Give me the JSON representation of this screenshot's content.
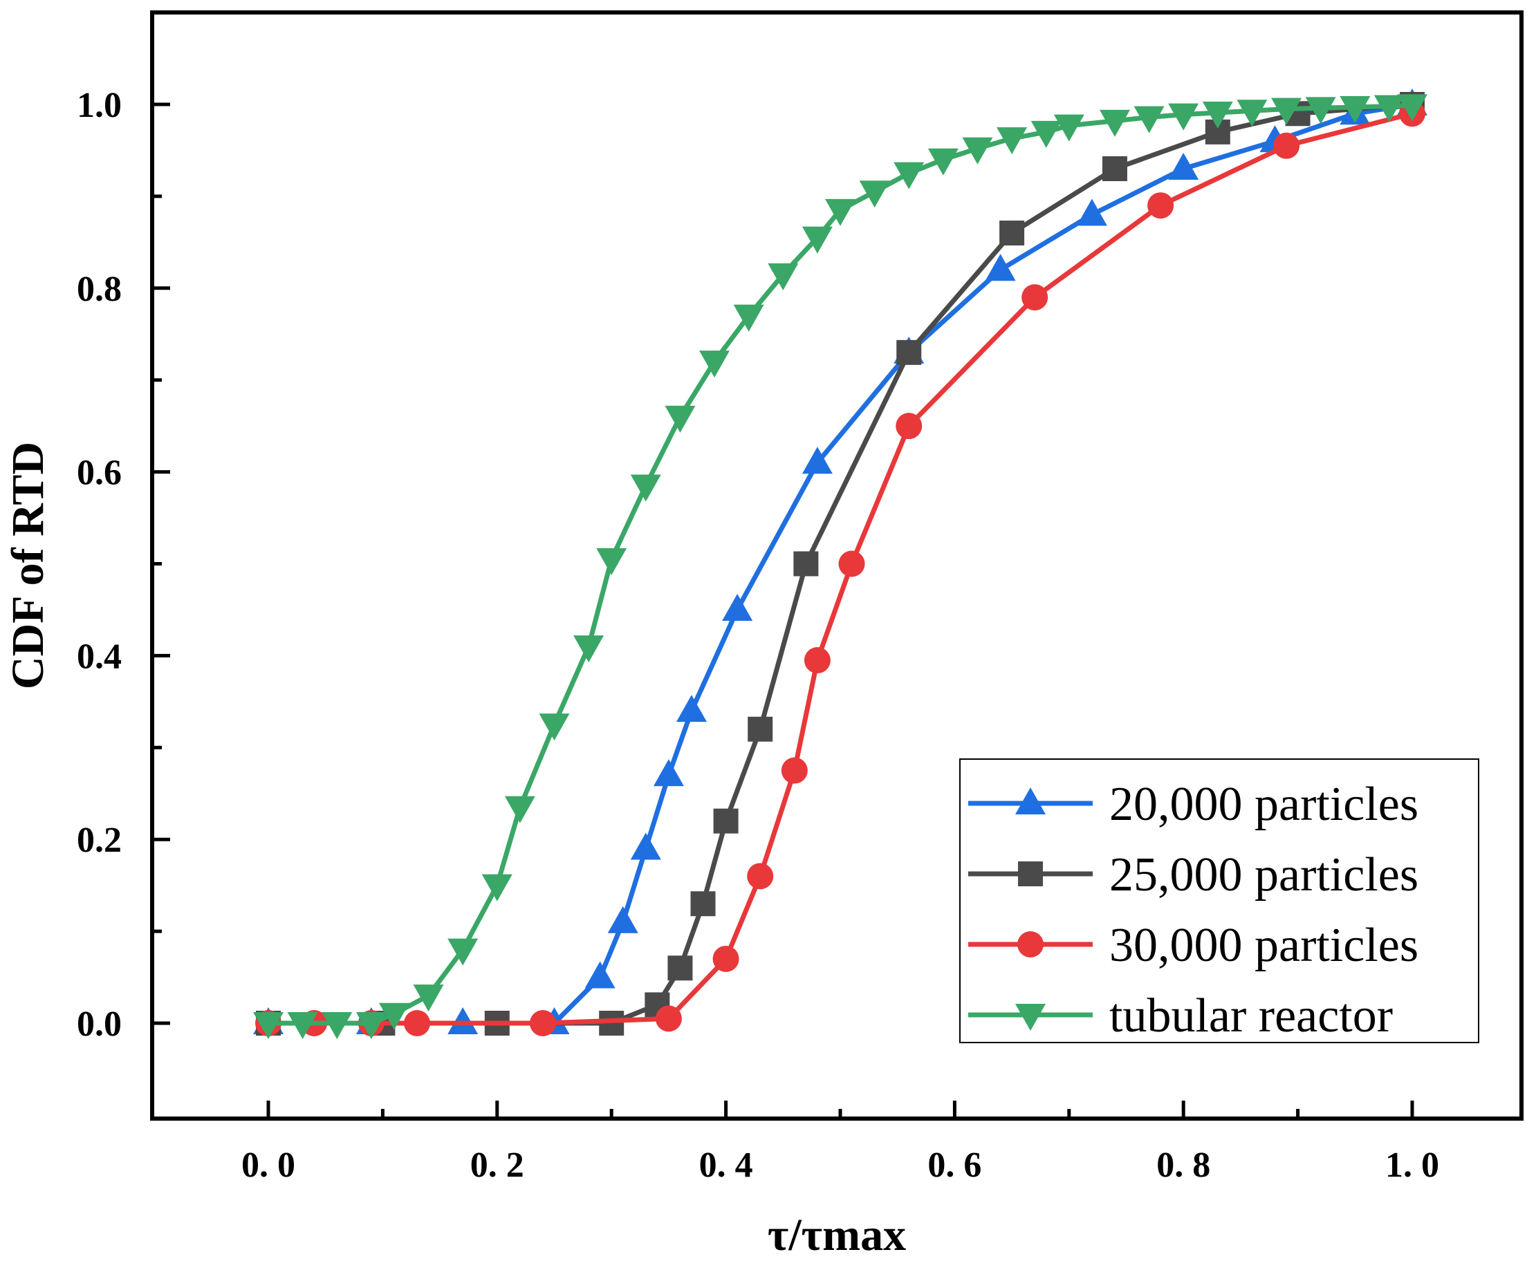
{
  "chart_data": {
    "type": "line",
    "title": "",
    "xlabel": "τ/τmax",
    "ylabel": "CDF of RTD",
    "xlim": [
      -0.1,
      1.1
    ],
    "ylim": [
      -0.1,
      1.1
    ],
    "x_ticks": [
      0.0,
      0.2,
      0.4,
      0.6,
      0.8,
      1.0
    ],
    "x_tick_labels": [
      "0. 0",
      "0. 2",
      "0. 4",
      "0. 6",
      "0. 8",
      "1. 0"
    ],
    "y_ticks": [
      0.0,
      0.2,
      0.4,
      0.6,
      0.8,
      1.0
    ],
    "y_tick_labels": [
      "0.0",
      "0.2",
      "0.4",
      "0.6",
      "0.8",
      "1.0"
    ],
    "grid": false,
    "legend_position": "bottom-right",
    "series": [
      {
        "name": "20,000 particles",
        "color": "#1f6fe0",
        "marker": "triangle-up",
        "x": [
          0.0,
          0.09,
          0.17,
          0.25,
          0.29,
          0.31,
          0.33,
          0.35,
          0.37,
          0.41,
          0.48,
          0.56,
          0.64,
          0.72,
          0.8,
          0.88,
          0.95,
          1.0
        ],
        "y": [
          0.0,
          0.0,
          0.0,
          0.0,
          0.05,
          0.11,
          0.19,
          0.27,
          0.34,
          0.45,
          0.61,
          0.73,
          0.82,
          0.88,
          0.93,
          0.96,
          0.99,
          1.0
        ]
      },
      {
        "name": "25,000 particles",
        "color": "#4a4a4a",
        "marker": "square",
        "x": [
          0.0,
          0.1,
          0.2,
          0.3,
          0.34,
          0.36,
          0.38,
          0.4,
          0.43,
          0.47,
          0.56,
          0.65,
          0.74,
          0.83,
          0.9,
          1.0
        ],
        "y": [
          0.0,
          0.0,
          0.0,
          0.0,
          0.02,
          0.06,
          0.13,
          0.22,
          0.32,
          0.5,
          0.73,
          0.86,
          0.93,
          0.97,
          0.99,
          1.0
        ]
      },
      {
        "name": "30,000 particles",
        "color": "#e8383a",
        "marker": "circle",
        "x": [
          0.0,
          0.04,
          0.09,
          0.13,
          0.24,
          0.35,
          0.4,
          0.43,
          0.46,
          0.48,
          0.51,
          0.56,
          0.67,
          0.78,
          0.89,
          1.0
        ],
        "y": [
          0.0,
          0.0,
          0.0,
          0.0,
          0.0,
          0.005,
          0.07,
          0.16,
          0.275,
          0.395,
          0.5,
          0.65,
          0.79,
          0.89,
          0.955,
          0.99
        ]
      },
      {
        "name": "tubular reactor",
        "color": "#3aa766",
        "marker": "triangle-down",
        "x": [
          0.0,
          0.03,
          0.06,
          0.09,
          0.11,
          0.14,
          0.17,
          0.2,
          0.22,
          0.25,
          0.28,
          0.3,
          0.33,
          0.36,
          0.39,
          0.42,
          0.45,
          0.48,
          0.5,
          0.53,
          0.56,
          0.59,
          0.62,
          0.65,
          0.68,
          0.7,
          0.74,
          0.77,
          0.8,
          0.83,
          0.86,
          0.89,
          0.92,
          0.95,
          0.98,
          1.0
        ],
        "y": [
          0.0,
          0.0,
          0.0,
          0.0,
          0.01,
          0.03,
          0.08,
          0.15,
          0.235,
          0.325,
          0.41,
          0.505,
          0.585,
          0.66,
          0.72,
          0.77,
          0.815,
          0.855,
          0.885,
          0.905,
          0.925,
          0.94,
          0.952,
          0.963,
          0.97,
          0.977,
          0.982,
          0.986,
          0.989,
          0.991,
          0.993,
          0.995,
          0.996,
          0.997,
          0.998,
          0.999
        ]
      }
    ]
  }
}
